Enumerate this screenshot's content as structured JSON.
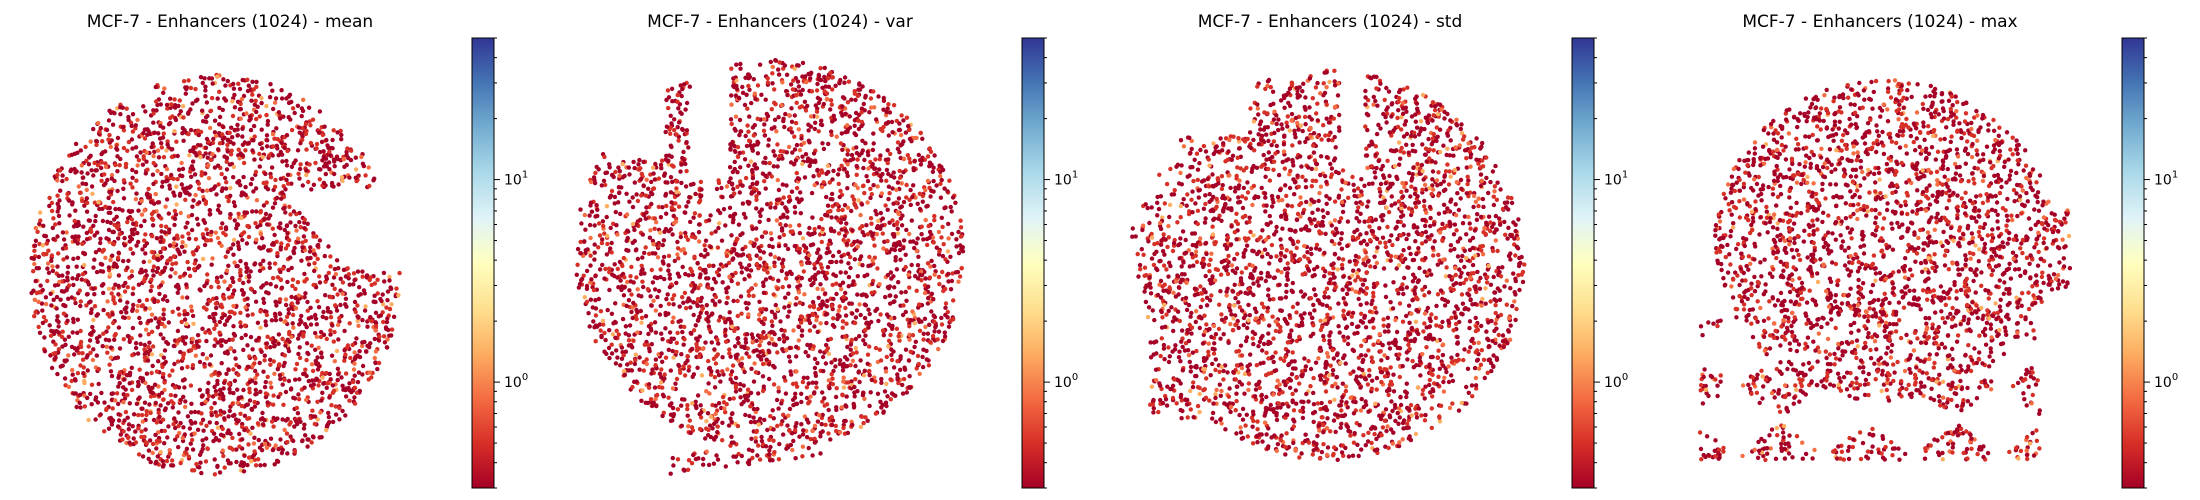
{
  "chart_data": [
    {
      "type": "scatter",
      "title": "MCF-7 - Enhancers (1024) - mean",
      "colorbar": {
        "colormap": "RdYlBu",
        "scale": "log",
        "range": [
          0.3,
          50
        ],
        "ticks": [
          {
            "base": "10",
            "exp": "1",
            "value": 10
          },
          {
            "base": "10",
            "exp": "0",
            "value": 1
          }
        ]
      },
      "shape": "round",
      "n_points": 3000
    },
    {
      "type": "scatter",
      "title": "MCF-7 - Enhancers (1024) - var",
      "colorbar": {
        "colormap": "RdYlBu",
        "scale": "log",
        "range": [
          0.3,
          50
        ],
        "ticks": [
          {
            "base": "10",
            "exp": "1",
            "value": 10
          },
          {
            "base": "10",
            "exp": "0",
            "value": 1
          }
        ]
      },
      "shape": "crescent",
      "n_points": 3000
    },
    {
      "type": "scatter",
      "title": "MCF-7 - Enhancers (1024) - std",
      "colorbar": {
        "colormap": "RdYlBu",
        "scale": "log",
        "range": [
          0.3,
          50
        ],
        "ticks": [
          {
            "base": "10",
            "exp": "1",
            "value": 10
          },
          {
            "base": "10",
            "exp": "0",
            "value": 1
          }
        ]
      },
      "shape": "blob",
      "n_points": 3000
    },
    {
      "type": "scatter",
      "title": "MCF-7 - Enhancers (1024) - max",
      "colorbar": {
        "colormap": "RdYlBu",
        "scale": "log",
        "range": [
          0.3,
          50
        ],
        "ticks": [
          {
            "base": "10",
            "exp": "1",
            "value": 10
          },
          {
            "base": "10",
            "exp": "0",
            "value": 1
          }
        ]
      },
      "shape": "fragmented",
      "n_points": 2600
    }
  ],
  "colors": {
    "point_low": "#a50026",
    "point_mid": "#d73027",
    "cmap_stops": [
      "#a50026",
      "#d73027",
      "#f46d43",
      "#fdae61",
      "#fee090",
      "#ffffbf",
      "#e0f3f8",
      "#abd9e9",
      "#74add1",
      "#4575b4",
      "#313695"
    ]
  }
}
